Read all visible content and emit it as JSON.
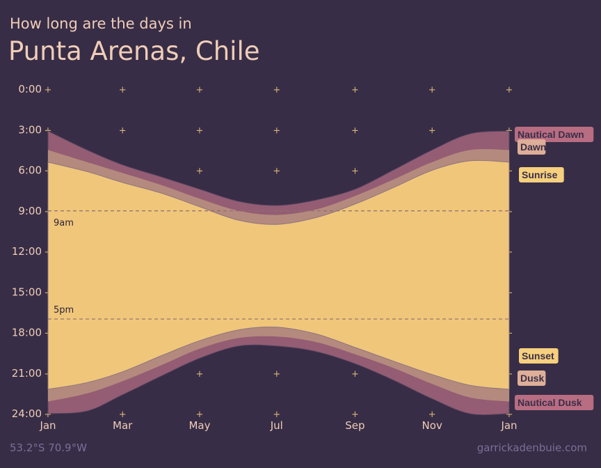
{
  "header": {
    "subtitle": "How long are the days in",
    "title": "Punta Arenas, Chile"
  },
  "footer": {
    "coordinates": "53.2°S 70.9°W",
    "credit": "garrickadenbuie.com"
  },
  "colors": {
    "background": "#372d46",
    "daylight": "#f0c67a",
    "civil_twilight": "#b48a7e",
    "nautical_twilight": "#945d73",
    "text": "#f0cdb8",
    "muted_text": "#7d6e98",
    "grid_marker": "#d9b878",
    "reference_line": "#8e6e6e"
  },
  "chart_data": {
    "type": "area",
    "x_axis": {
      "tick_labels": [
        "Jan",
        "Mar",
        "May",
        "Jul",
        "Sep",
        "Nov",
        "Jan"
      ],
      "tick_days": [
        0,
        59,
        120,
        181,
        243,
        304,
        365
      ],
      "range": [
        0,
        365
      ]
    },
    "y_axis": {
      "tick_labels": [
        "0:00",
        "3:00",
        "6:00",
        "9:00",
        "12:00",
        "15:00",
        "18:00",
        "21:00",
        "24:00"
      ],
      "tick_hours": [
        0,
        3,
        6,
        9,
        12,
        15,
        18,
        21,
        24
      ],
      "range": [
        0,
        24
      ],
      "reversed": true
    },
    "grid": "plus markers",
    "reference_lines": [
      {
        "label": "9am",
        "hour": 9
      },
      {
        "label": "5pm",
        "hour": 17
      }
    ],
    "series_labels": {
      "nautical_dawn": "Nautical Dawn",
      "dawn": "Dawn",
      "sunrise": "Sunrise",
      "sunset": "Sunset",
      "dusk": "Dusk",
      "nautical_dusk": "Nautical Dusk"
    },
    "x": [
      "Jan 1",
      "Feb 1",
      "Mar 1",
      "Apr 1",
      "May 1",
      "Jun 1",
      "Jul 1",
      "Aug 1",
      "Sep 1",
      "Oct 1",
      "Nov 1",
      "Dec 1",
      "Jan 1"
    ],
    "days": [
      0,
      31,
      59,
      90,
      120,
      151,
      181,
      212,
      243,
      273,
      304,
      334,
      365
    ],
    "series": [
      {
        "name": "Nautical Dawn",
        "key": "nautical_dawn",
        "values": [
          3.1,
          4.5,
          5.6,
          6.5,
          7.4,
          8.3,
          8.6,
          8.2,
          7.4,
          6.0,
          4.5,
          3.3,
          3.1
        ]
      },
      {
        "name": "Dawn",
        "key": "dawn",
        "values": [
          4.5,
          5.4,
          6.2,
          7.1,
          8.1,
          9.0,
          9.3,
          8.9,
          7.9,
          6.7,
          5.4,
          4.5,
          4.5
        ]
      },
      {
        "name": "Sunrise",
        "key": "sunrise",
        "values": [
          5.4,
          6.1,
          6.9,
          7.7,
          8.7,
          9.7,
          10.0,
          9.5,
          8.5,
          7.3,
          6.0,
          5.3,
          5.4
        ]
      },
      {
        "name": "Sunset",
        "key": "sunset",
        "values": [
          22.2,
          21.7,
          20.9,
          19.7,
          18.6,
          17.8,
          17.6,
          18.1,
          19.1,
          20.1,
          21.1,
          21.9,
          22.2
        ]
      },
      {
        "name": "Dusk",
        "key": "dusk",
        "values": [
          23.1,
          22.5,
          21.6,
          20.4,
          19.2,
          18.4,
          18.3,
          18.7,
          19.6,
          20.6,
          21.8,
          22.8,
          23.1
        ]
      },
      {
        "name": "Nautical Dusk",
        "key": "nautical_dusk",
        "values": [
          24.0,
          23.8,
          22.6,
          21.2,
          19.9,
          19.0,
          19.0,
          19.4,
          20.3,
          21.5,
          22.9,
          24.0,
          24.0
        ]
      }
    ]
  }
}
